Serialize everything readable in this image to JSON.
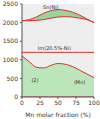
{
  "chart_data": {
    "type": "phase_diagram",
    "x_label": "Mn molar fraction (%)",
    "x": [
      0,
      10,
      20,
      30,
      40,
      50,
      60,
      70,
      80,
      90,
      100
    ],
    "xlim": [
      0,
      100
    ],
    "xticks": [
      0,
      25,
      50,
      75,
      100
    ],
    "ylim": [
      0,
      2500
    ],
    "yticks": [
      0,
      500,
      1000,
      1500,
      2000,
      2500
    ],
    "grid": false,
    "series": [
      {
        "type": "range",
        "color": "#8fd18f",
        "values": [
          [
            2050,
            2050
          ],
          [
            2050,
            2080
          ],
          [
            2060,
            2150
          ],
          [
            2080,
            2250
          ],
          [
            2120,
            2320
          ],
          [
            2150,
            2350
          ],
          [
            2160,
            2330
          ],
          [
            2150,
            2280
          ],
          [
            2120,
            2200
          ],
          [
            2080,
            2100
          ],
          [
            2000,
            2000
          ]
        ]
      },
      {
        "type": "line",
        "color": "#d9302c",
        "values": [
          1200,
          1200,
          1200,
          1200,
          1200,
          1200,
          1200,
          1200,
          1200,
          1200,
          1200
        ]
      },
      {
        "type": "range",
        "color": "#b5e3b5",
        "values": [
          [
            0,
            1100
          ],
          [
            0,
            950
          ],
          [
            0,
            800
          ],
          [
            0,
            780
          ],
          [
            0,
            850
          ],
          [
            0,
            900
          ],
          [
            0,
            880
          ],
          [
            0,
            820
          ],
          [
            0,
            720
          ],
          [
            0,
            620
          ],
          [
            0,
            520
          ]
        ]
      }
    ],
    "annotations": [
      {
        "text": "Sn(Ni)",
        "x": 40,
        "y": 2420
      },
      {
        "text": "Im(20.5%-Ni)",
        "x": 45,
        "y": 1320
      },
      {
        "text": "(2)",
        "x": 18,
        "y": 450
      },
      {
        "text": "(Mn)",
        "x": 80,
        "y": 400
      }
    ]
  }
}
